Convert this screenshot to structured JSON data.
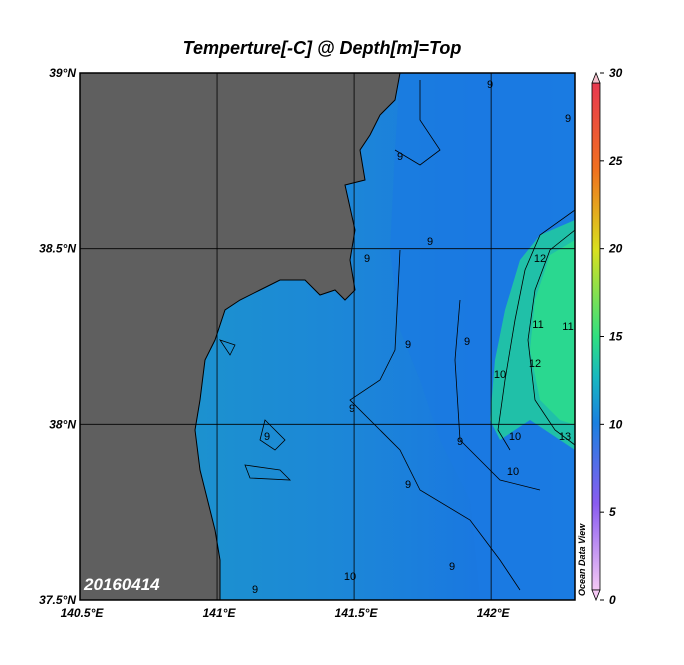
{
  "title": "Temperture[-C] @ Depth[m]=Top",
  "map": {
    "xlim": [
      140.5,
      142.306
    ],
    "ylim": [
      37.5,
      39
    ],
    "xticks": [
      {
        "value": 140.5,
        "label": "140.5°E"
      },
      {
        "value": 141,
        "label": "141°E"
      },
      {
        "value": 141.5,
        "label": "141.5°E"
      },
      {
        "value": 142,
        "label": "142°E"
      }
    ],
    "yticks": [
      {
        "value": 37.5,
        "label": "37.5°N"
      },
      {
        "value": 38,
        "label": "38°N"
      },
      {
        "value": 38.5,
        "label": "38.5°N"
      },
      {
        "value": 39,
        "label": "39°N"
      }
    ],
    "grid": true
  },
  "colorbar": {
    "lim": [
      0,
      30
    ],
    "ticks": [
      0,
      5,
      10,
      15,
      20,
      25,
      30
    ]
  },
  "contour_labels": [
    9,
    9,
    9,
    9,
    9,
    9,
    9,
    9,
    9,
    9,
    10,
    10,
    10,
    11,
    12,
    12,
    13,
    9,
    11,
    9,
    10,
    9
  ],
  "date_label": "20160414",
  "credit": "Ocean Data View"
}
